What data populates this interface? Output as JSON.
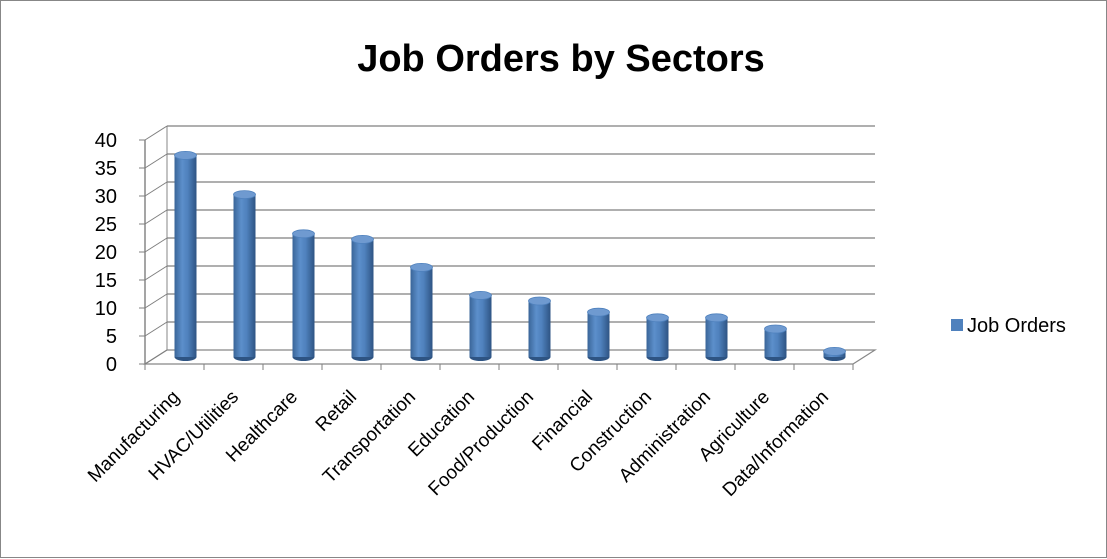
{
  "chart_data": {
    "type": "bar",
    "title": "Job Orders by Sectors",
    "categories": [
      "Manufacturing",
      "HVAC/Utilities",
      "Healthcare",
      "Retail",
      "Transportation",
      "Education",
      "Food/Production",
      "Financial",
      "Construction",
      "Administration",
      "Agriculture",
      "Data/Information"
    ],
    "series": [
      {
        "name": "Job Orders",
        "values": [
          36,
          29,
          22,
          21,
          16,
          11,
          10,
          8,
          7,
          7,
          5,
          1
        ],
        "color": "#4F81BD"
      }
    ],
    "ylim": [
      0,
      40
    ],
    "yticks": [
      0,
      5,
      10,
      15,
      20,
      25,
      30,
      35,
      40
    ],
    "grid": true,
    "legend_position": "right",
    "style": "3d-cylinder"
  }
}
